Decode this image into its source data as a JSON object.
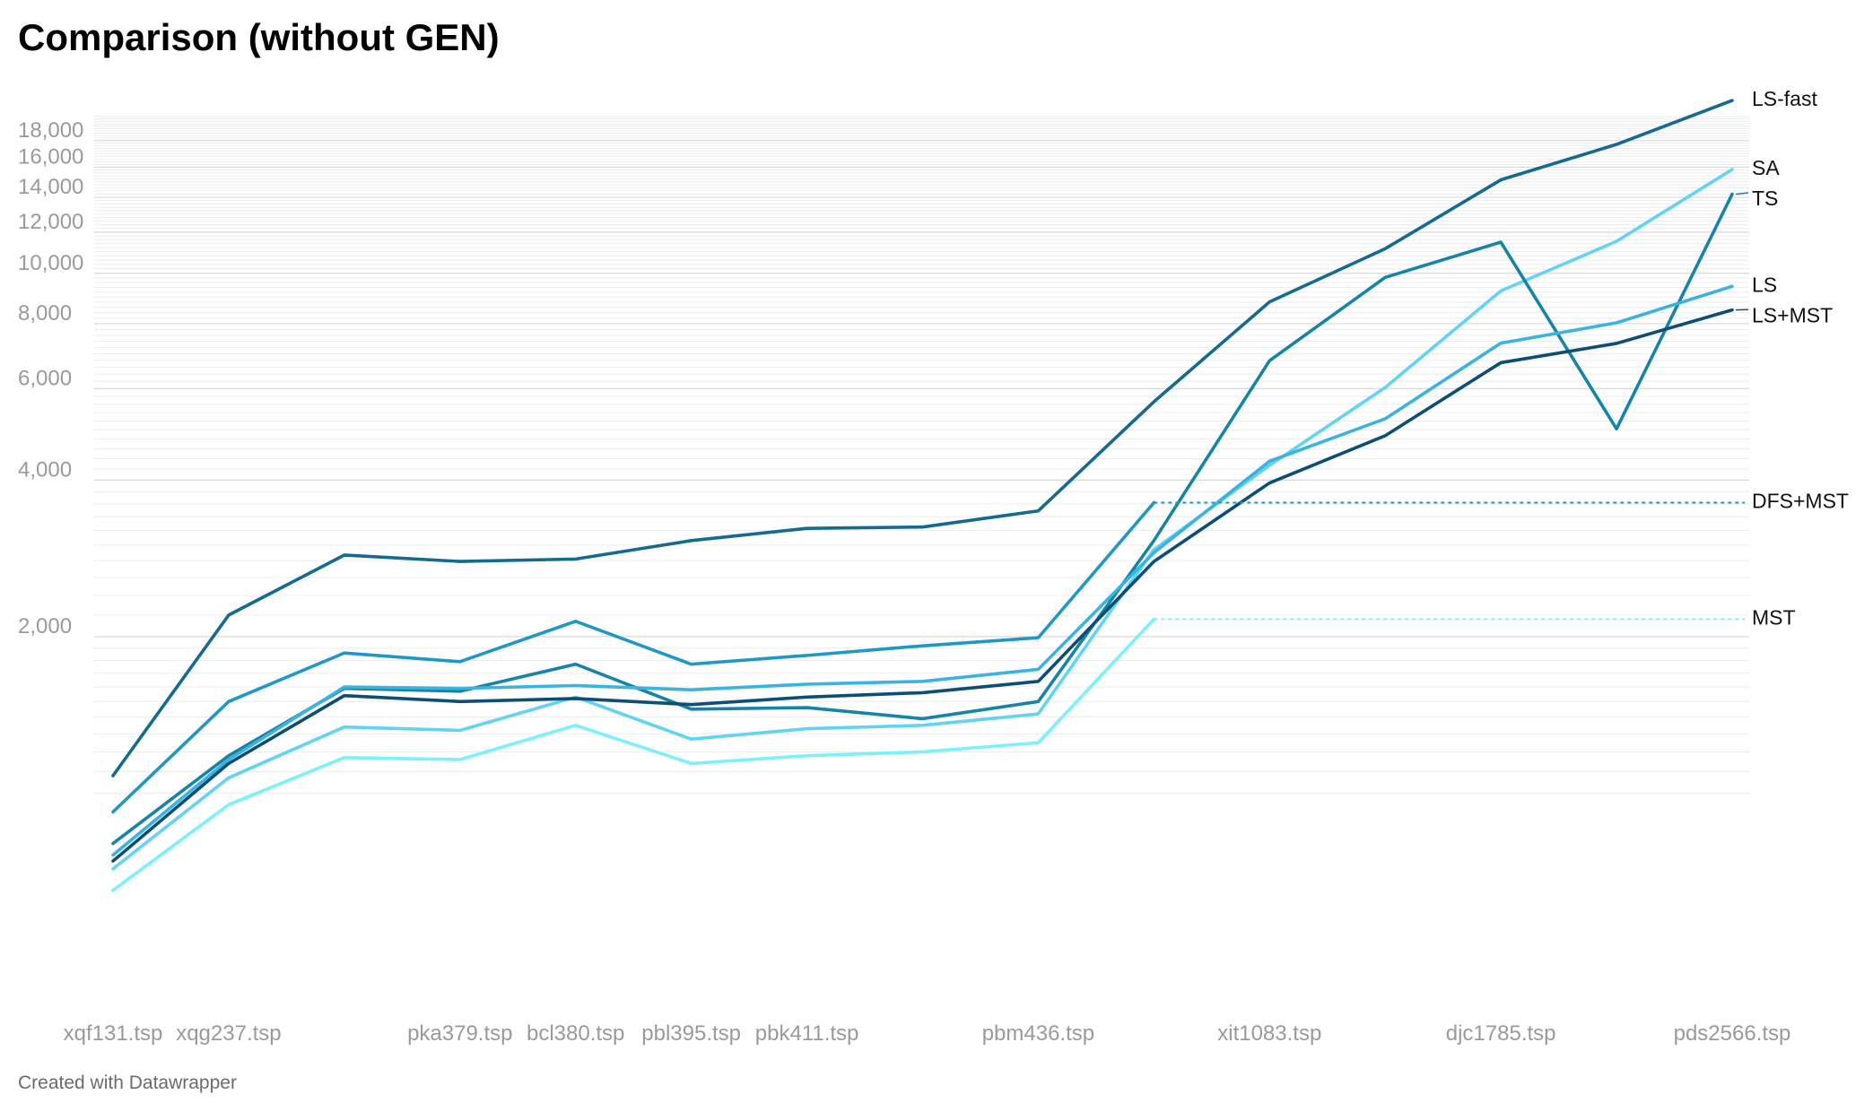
{
  "chart_data": {
    "type": "line",
    "title": "Comparison (without GEN)",
    "footer": "Created with Datawrapper",
    "y_scale": "log",
    "ylim": [
      400,
      21000
    ],
    "y_ticks": [
      2000,
      4000,
      6000,
      8000,
      10000,
      12000,
      14000,
      16000,
      18000
    ],
    "y_tick_labels": [
      "2,000",
      "4,000",
      "6,000",
      "8,000",
      "10,000",
      "12,000",
      "14,000",
      "16,000",
      "18,000"
    ],
    "x_labels": [
      "xqf131.tsp",
      "xqg237.tsp",
      "",
      "pka379.tsp",
      "bcl380.tsp",
      "pbl395.tsp",
      "pbk411.tsp",
      "",
      "pbm436.tsp",
      "",
      "xit1083.tsp",
      "",
      "djc1785.tsp",
      "",
      "pds2566.tsp"
    ],
    "grid": true,
    "series": [
      {
        "name": "LS-fast",
        "color": "#156a8f",
        "values": [
          1080,
          2200,
          2870,
          2790,
          2820,
          3060,
          3230,
          3250,
          3490,
          5660,
          8810,
          11150,
          15130,
          17700,
          21500
        ]
      },
      {
        "name": "SA",
        "color": "#63d3f3",
        "values": [
          715,
          1070,
          1340,
          1320,
          1530,
          1270,
          1330,
          1350,
          1420,
          2940,
          4270,
          6030,
          9250,
          11520,
          15840
        ]
      },
      {
        "name": "TS",
        "color": "#1584a6",
        "values": [
          800,
          1180,
          1590,
          1570,
          1770,
          1450,
          1460,
          1390,
          1500,
          3060,
          6790,
          9820,
          11480,
          5020,
          14200
        ]
      },
      {
        "name": "LS",
        "color": "#3bb3e1",
        "values": [
          760,
          1160,
          1600,
          1590,
          1610,
          1580,
          1620,
          1640,
          1730,
          2900,
          4350,
          5250,
          7340,
          8030,
          9440
        ]
      },
      {
        "name": "LS+MST",
        "color": "#0d4e75",
        "values": [
          740,
          1140,
          1540,
          1500,
          1520,
          1480,
          1530,
          1560,
          1640,
          2790,
          3950,
          4870,
          6730,
          7330,
          8500
        ]
      },
      {
        "name": "DFS+MST",
        "color": "#2098c7",
        "values": [
          920,
          1500,
          1860,
          1790,
          2140,
          1770,
          1840,
          1920,
          1990,
          3620,
          3620,
          3620,
          3620,
          3620,
          3620
        ],
        "dashed_from_index": 9
      },
      {
        "name": "MST",
        "color": "#7bf1fc",
        "values": [
          650,
          950,
          1170,
          1160,
          1350,
          1140,
          1180,
          1200,
          1250,
          2160,
          2160,
          2160,
          2160,
          2160,
          2160
        ],
        "dashed_from_index": 9
      }
    ]
  }
}
